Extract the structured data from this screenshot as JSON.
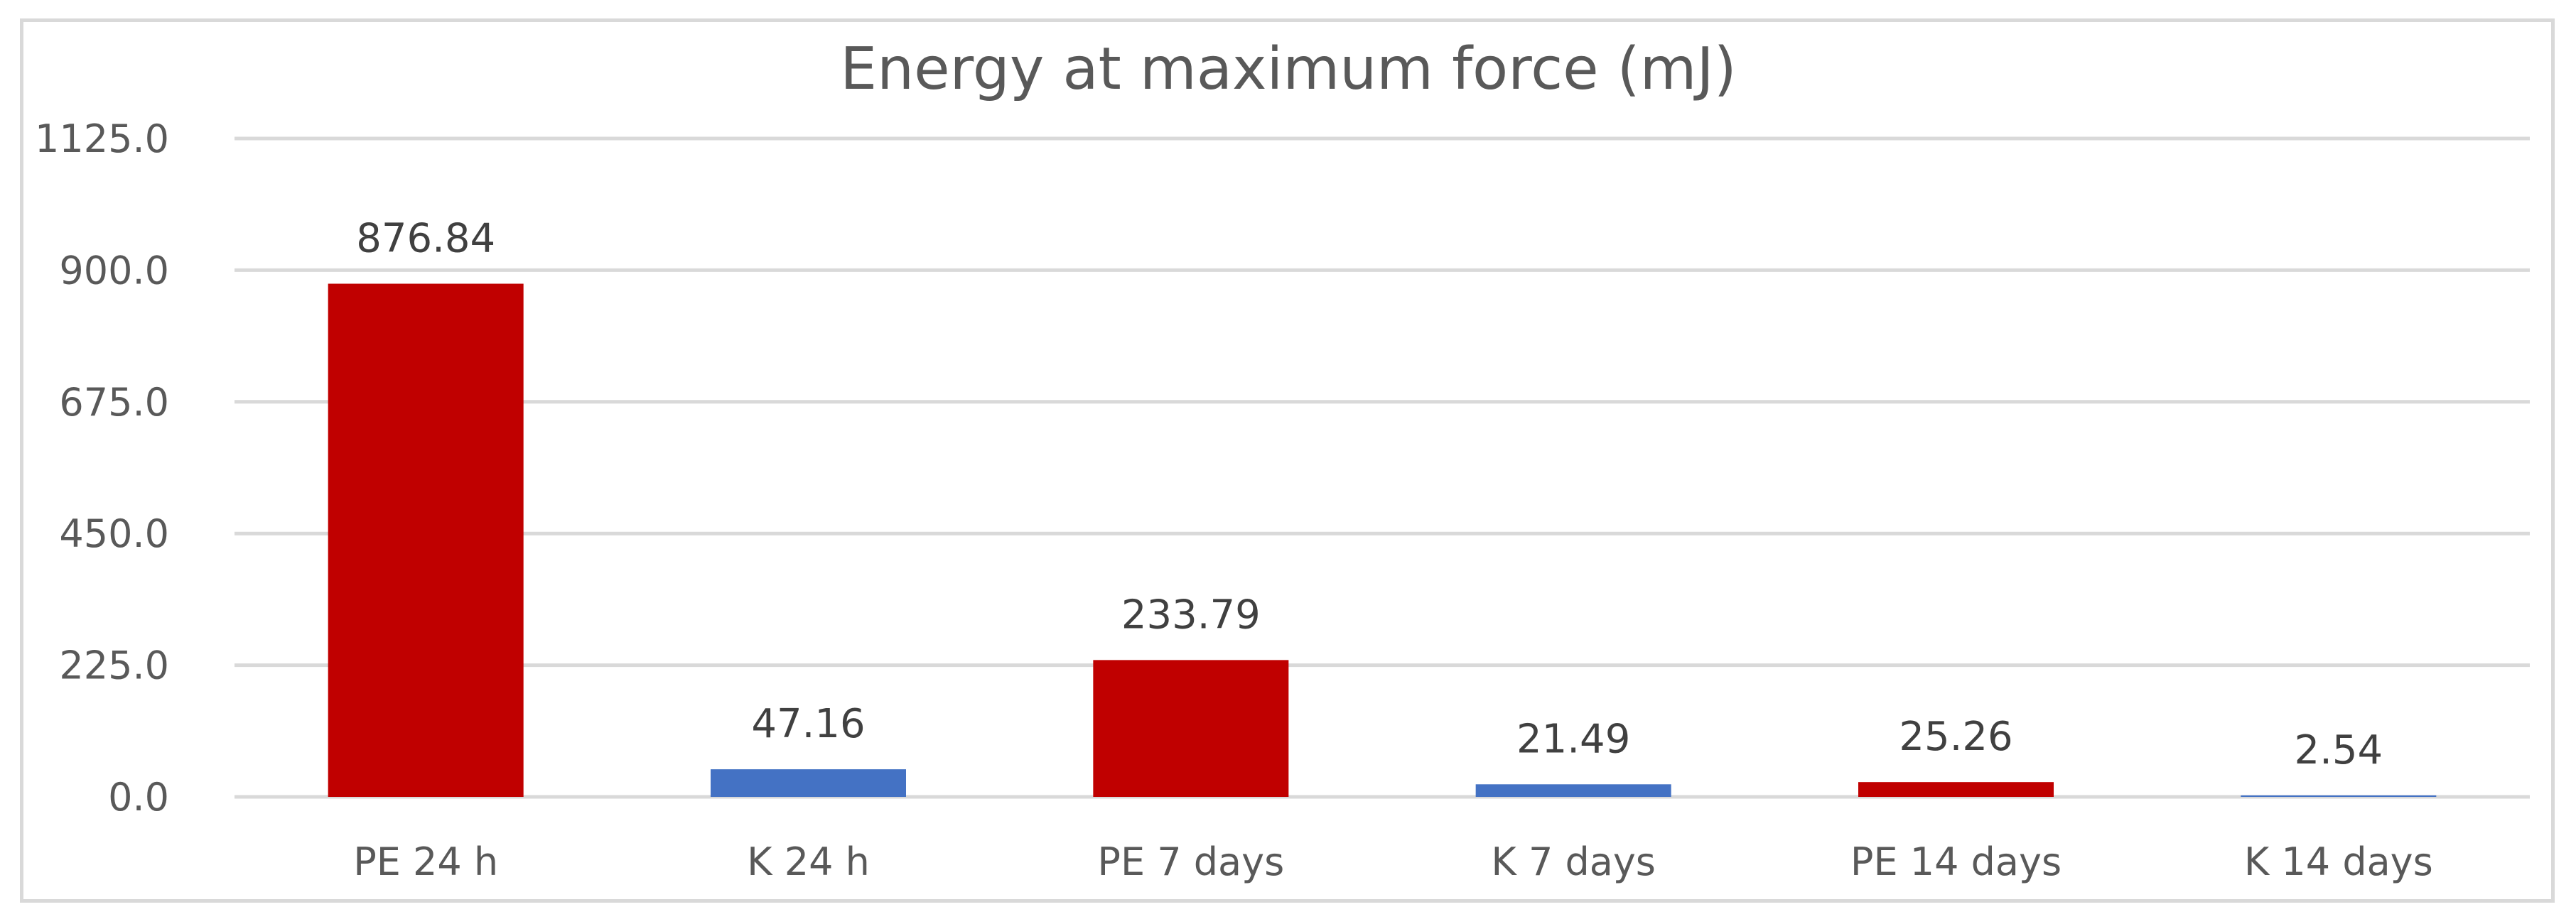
{
  "chart_data": {
    "type": "bar",
    "title": "Energy at maximum force (mJ)",
    "xlabel": "",
    "ylabel": "",
    "categories": [
      "PE 24 h",
      "K 24 h",
      "PE 7 days",
      "K 7 days",
      "PE 14 days",
      "K 14 days"
    ],
    "values": [
      876.84,
      47.16,
      233.79,
      21.49,
      25.26,
      2.54
    ],
    "value_labels": [
      "876.84",
      "47.16",
      "233.79",
      "21.49",
      "25.26",
      "2.54"
    ],
    "bar_colors": [
      "#c00000",
      "#4472c4",
      "#c00000",
      "#4472c4",
      "#c00000",
      "#4472c4"
    ],
    "ylim": [
      0,
      1125
    ],
    "yticks": [
      0,
      225,
      450,
      675,
      900,
      1125
    ],
    "ytick_labels": [
      "0.0",
      "225.0",
      "450.0",
      "675.0",
      "900.0",
      "1125.0"
    ],
    "grid": true,
    "legend": "none"
  }
}
